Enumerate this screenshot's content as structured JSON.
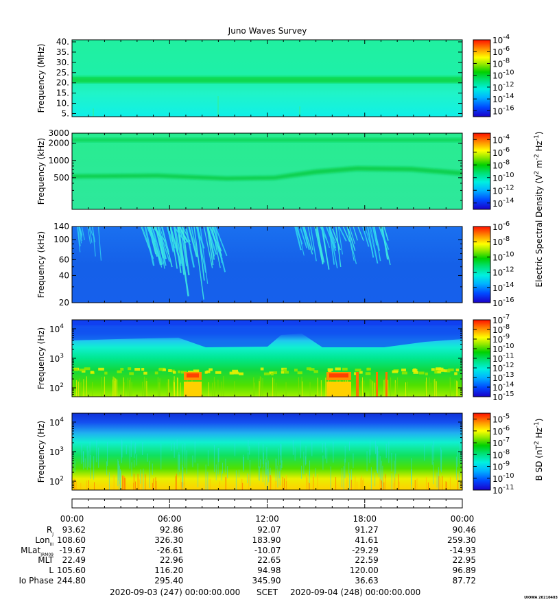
{
  "chart_data": {
    "type": "heatmap",
    "title": "Juno Waves Survey",
    "time_ticks": [
      "00:00",
      "06:00",
      "12:00",
      "18:00",
      "00:00"
    ],
    "panels": [
      {
        "id": "p1",
        "ylabel": "Frequency (MHz)",
        "yscale": "linear",
        "ylim": [
          3.5,
          41
        ],
        "yticks": [
          {
            "v": 40,
            "label": "40."
          },
          {
            "v": 35,
            "label": "35."
          },
          {
            "v": 30,
            "label": "30."
          },
          {
            "v": 25,
            "label": "25."
          },
          {
            "v": 20,
            "label": "20."
          },
          {
            "v": 15,
            "label": "15."
          },
          {
            "v": 10,
            "label": "10."
          },
          {
            "v": 5,
            "label": "5."
          }
        ],
        "colorbar": "cb1"
      },
      {
        "id": "p2",
        "ylabel": "Frequency (kHz)",
        "yscale": "log",
        "ylim": [
          140,
          3000
        ],
        "yticks": [
          {
            "v": 3000,
            "label": "3000"
          },
          {
            "v": 2000,
            "label": "2000"
          },
          {
            "v": 1000,
            "label": "1000"
          },
          {
            "v": 500,
            "label": "500"
          }
        ],
        "colorbar": "cb1"
      },
      {
        "id": "p3",
        "ylabel": "Frequency (kHz)",
        "yscale": "log",
        "ylim": [
          20,
          140
        ],
        "yticks": [
          {
            "v": 140,
            "label": "140"
          },
          {
            "v": 100,
            "label": "100"
          },
          {
            "v": 60,
            "label": "60"
          },
          {
            "v": 40,
            "label": "40"
          },
          {
            "v": 20,
            "label": "20"
          }
        ],
        "colorbar": "cb2"
      },
      {
        "id": "p4",
        "ylabel": "Frequency (Hz)",
        "yscale": "log",
        "ylim": [
          50,
          20000
        ],
        "yticks": [
          {
            "v": 10000,
            "base": "10",
            "exp": "4"
          },
          {
            "v": 1000,
            "base": "10",
            "exp": "3"
          },
          {
            "v": 100,
            "base": "10",
            "exp": "2"
          }
        ],
        "colorbar": "cb3"
      },
      {
        "id": "p5",
        "ylabel": "Frequency (Hz)",
        "yscale": "log",
        "ylim": [
          50,
          20000
        ],
        "yticks": [
          {
            "v": 10000,
            "base": "10",
            "exp": "4"
          },
          {
            "v": 1000,
            "base": "10",
            "exp": "3"
          },
          {
            "v": 100,
            "base": "10",
            "exp": "2"
          }
        ],
        "colorbar": "cb4"
      }
    ],
    "colorbars": [
      {
        "id": "cb1",
        "exponents": [
          "-4",
          "-6",
          "-8",
          "-10",
          "-12",
          "-14",
          "-16"
        ],
        "emin": -17,
        "emax": -4
      },
      {
        "id": "cb1b",
        "exponents": [
          "-4",
          "-6",
          "-8",
          "-10",
          "-12",
          "-14"
        ],
        "emin": -15,
        "emax": -3
      },
      {
        "id": "cb2",
        "exponents": [
          "-6",
          "-8",
          "-10",
          "-12",
          "-14",
          "-16"
        ],
        "emin": -16,
        "emax": -6
      },
      {
        "id": "cb3",
        "exponents": [
          "-7",
          "-8",
          "-9",
          "-10",
          "-11",
          "-12",
          "-13",
          "-14",
          "-15"
        ],
        "emin": -15,
        "emax": -7
      },
      {
        "id": "cb4",
        "exponents": [
          "-5",
          "-6",
          "-7",
          "-8",
          "-9",
          "-10",
          "-11"
        ],
        "emin": -11,
        "emax": -4.5
      }
    ],
    "colorbar_labels": {
      "electric": {
        "main": "Electric Spectral Density (V",
        "sup1": "2",
        "mid": " m",
        "sup2": "-2",
        "mid2": " Hz",
        "sup3": "-1",
        "end": ")"
      },
      "magnetic": {
        "main": "B SD (nT",
        "sup1": "2",
        "mid": " Hz",
        "sup3": "-1",
        "end": ")"
      }
    },
    "ephemeris": {
      "rows": [
        {
          "label": "R",
          "sub": "J",
          "values": [
            "93.62",
            "92.86",
            "92.07",
            "91.27",
            "90.46"
          ]
        },
        {
          "label": "Lon",
          "sub": "III",
          "values": [
            "108.60",
            "326.30",
            "183.90",
            "41.61",
            "259.30"
          ]
        },
        {
          "label": "MLat",
          "sub": "JRM09",
          "values": [
            "-19.67",
            "-26.61",
            "-10.07",
            "-29.29",
            "-14.93"
          ]
        },
        {
          "label": "MLT",
          "sub": "",
          "values": [
            "22.49",
            "22.96",
            "22.65",
            "22.59",
            "22.95"
          ]
        },
        {
          "label": "L",
          "sub": "",
          "values": [
            "105.60",
            "116.20",
            "94.98",
            "120.00",
            "96.89"
          ]
        },
        {
          "label": "Io Phase",
          "sub": "",
          "values": [
            "244.80",
            "295.40",
            "345.90",
            "36.63",
            "87.72"
          ]
        }
      ]
    },
    "date_start": "2020-09-03 (247) 00:00:00.000",
    "scet_label": "SCET",
    "date_end": "2020-09-04 (248) 00:00:00.000",
    "watermark": "UIOWA 20210403"
  }
}
